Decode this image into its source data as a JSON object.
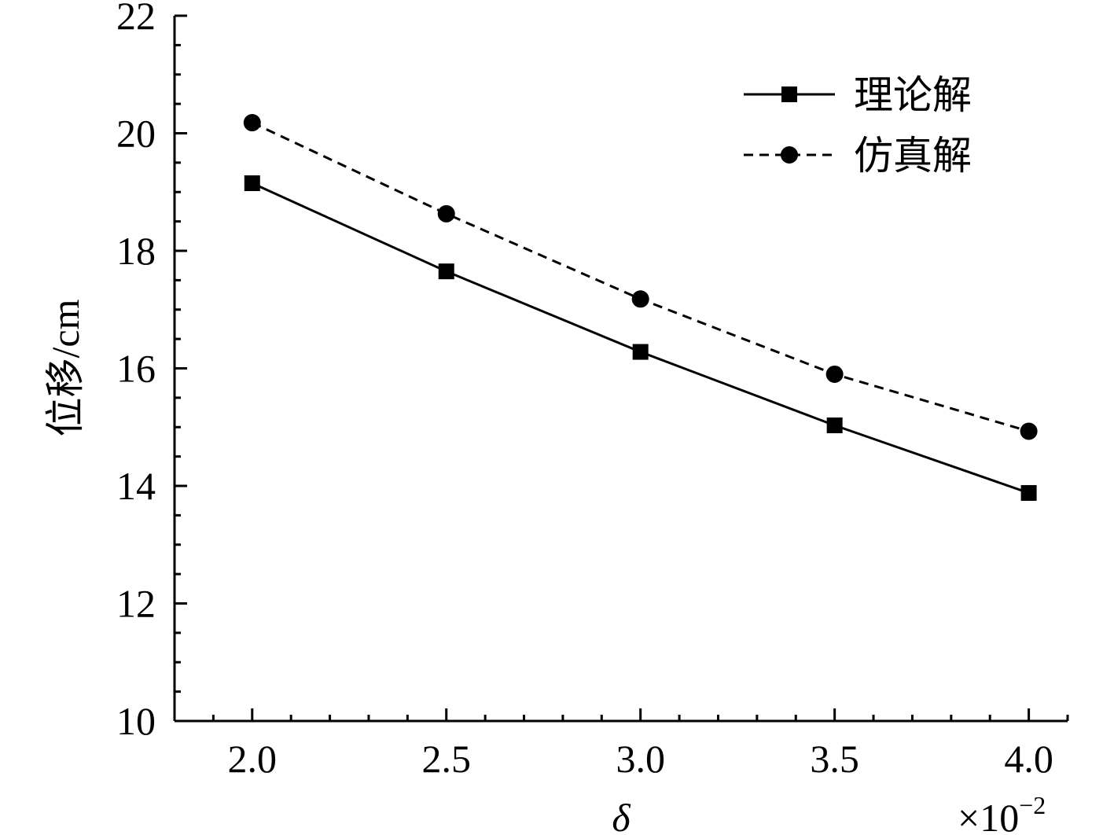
{
  "chart_data": {
    "type": "line",
    "x": [
      2.0,
      2.5,
      3.0,
      3.5,
      4.0
    ],
    "x_tick_labels": [
      "2.0",
      "2.5",
      "3.0",
      "3.5",
      "4.0"
    ],
    "xlabel": "δ",
    "x_multiplier_label": "×10",
    "x_multiplier_exponent": "−2",
    "ylabel": "位移/cm",
    "y_tick_labels": [
      "10",
      "12",
      "14",
      "16",
      "18",
      "20",
      "22"
    ],
    "xlim": [
      1.8,
      4.1
    ],
    "ylim": [
      10,
      22
    ],
    "series": [
      {
        "name": "理论解",
        "values": [
          19.15,
          17.65,
          16.28,
          15.03,
          13.88
        ],
        "line_style": "solid",
        "marker": "square",
        "color": "#000000"
      },
      {
        "name": "仿真解",
        "values": [
          20.18,
          18.63,
          17.18,
          15.9,
          14.93
        ],
        "line_style": "dashed",
        "marker": "circle",
        "color": "#000000"
      }
    ],
    "legend_position": "top-right",
    "grid": false
  }
}
